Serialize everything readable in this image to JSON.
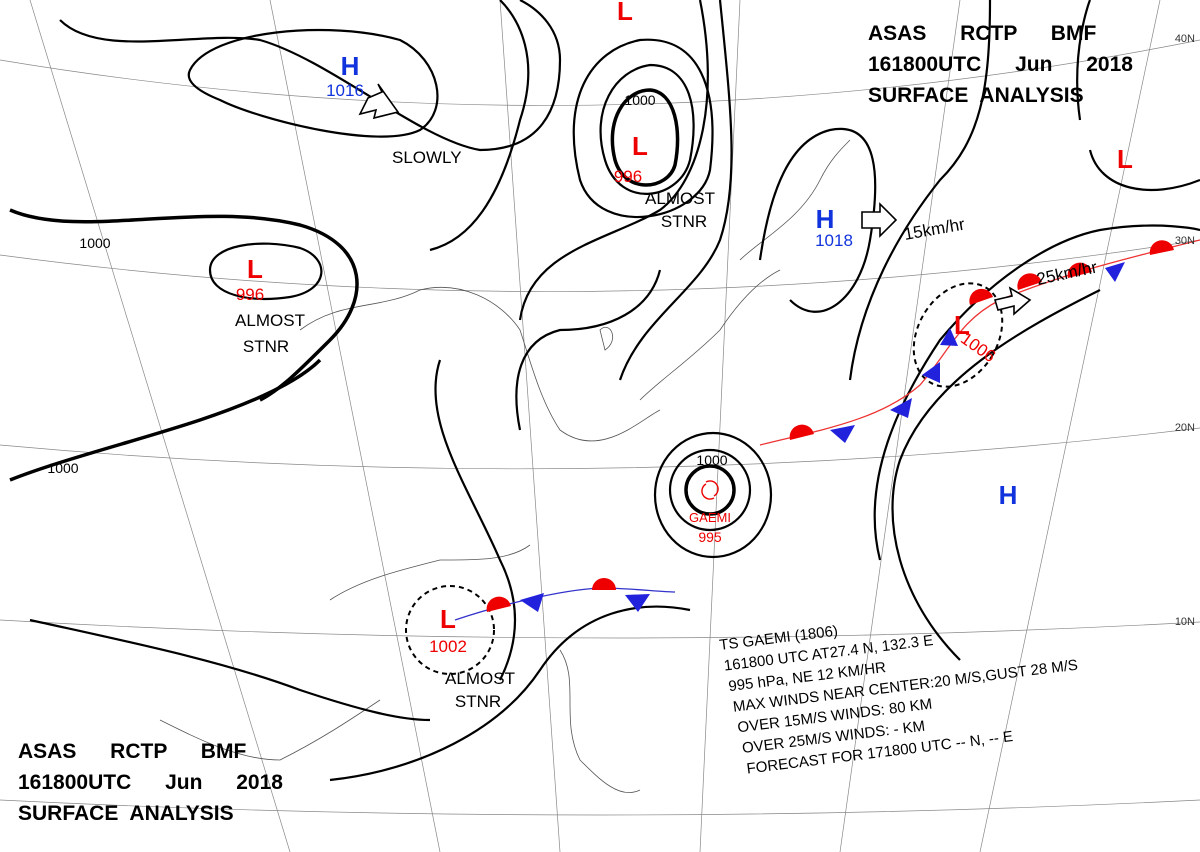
{
  "header_top": {
    "line1": "ASAS RCTP BMF",
    "line2": "161800UTC Jun 2018",
    "line3": "SURFACE ANALYSIS"
  },
  "header_bottom": {
    "line1": "ASAS RCTP BMF",
    "line2": "161800UTC Jun 2018",
    "line3": "SURFACE ANALYSIS"
  },
  "systems": [
    {
      "symbol": "H",
      "pressure": 1016,
      "motion": "SLOWLY"
    },
    {
      "symbol": "L",
      "pressure": 996,
      "motion": [
        "ALMOST",
        "STNR"
      ]
    },
    {
      "symbol": "H",
      "pressure": 1018,
      "motion": "15km/hr"
    },
    {
      "symbol": "L",
      "pressure": 996,
      "motion": [
        "ALMOST",
        "STNR"
      ]
    },
    {
      "symbol": "L",
      "pressure": 1006,
      "motion": "25km/hr"
    },
    {
      "symbol": "L",
      "pressure": 1002,
      "motion": [
        "ALMOST",
        "STNR"
      ]
    },
    {
      "symbol": "L"
    },
    {
      "symbol": "H"
    },
    {
      "symbol": "L"
    }
  ],
  "typhoon": {
    "name": "GAEMI",
    "pressure": 995
  },
  "isobar_labels": [
    1000,
    1000,
    1000,
    1000
  ],
  "latitude_labels": [
    "40N",
    "30N",
    "20N",
    "10N"
  ],
  "typhoon_info": [
    "TS GAEMI (1806)",
    "161800 UTC AT27.4 N, 132.3 E",
    "995 hPa, NE 12 KM/HR",
    "MAX WINDS NEAR CENTER:20 M/S,GUST 28 M/S",
    "OVER 15M/S WINDS: 80 KM",
    "OVER 25M/S WINDS: - KM",
    "FORECAST FOR 171800 UTC -- N, -- E"
  ]
}
